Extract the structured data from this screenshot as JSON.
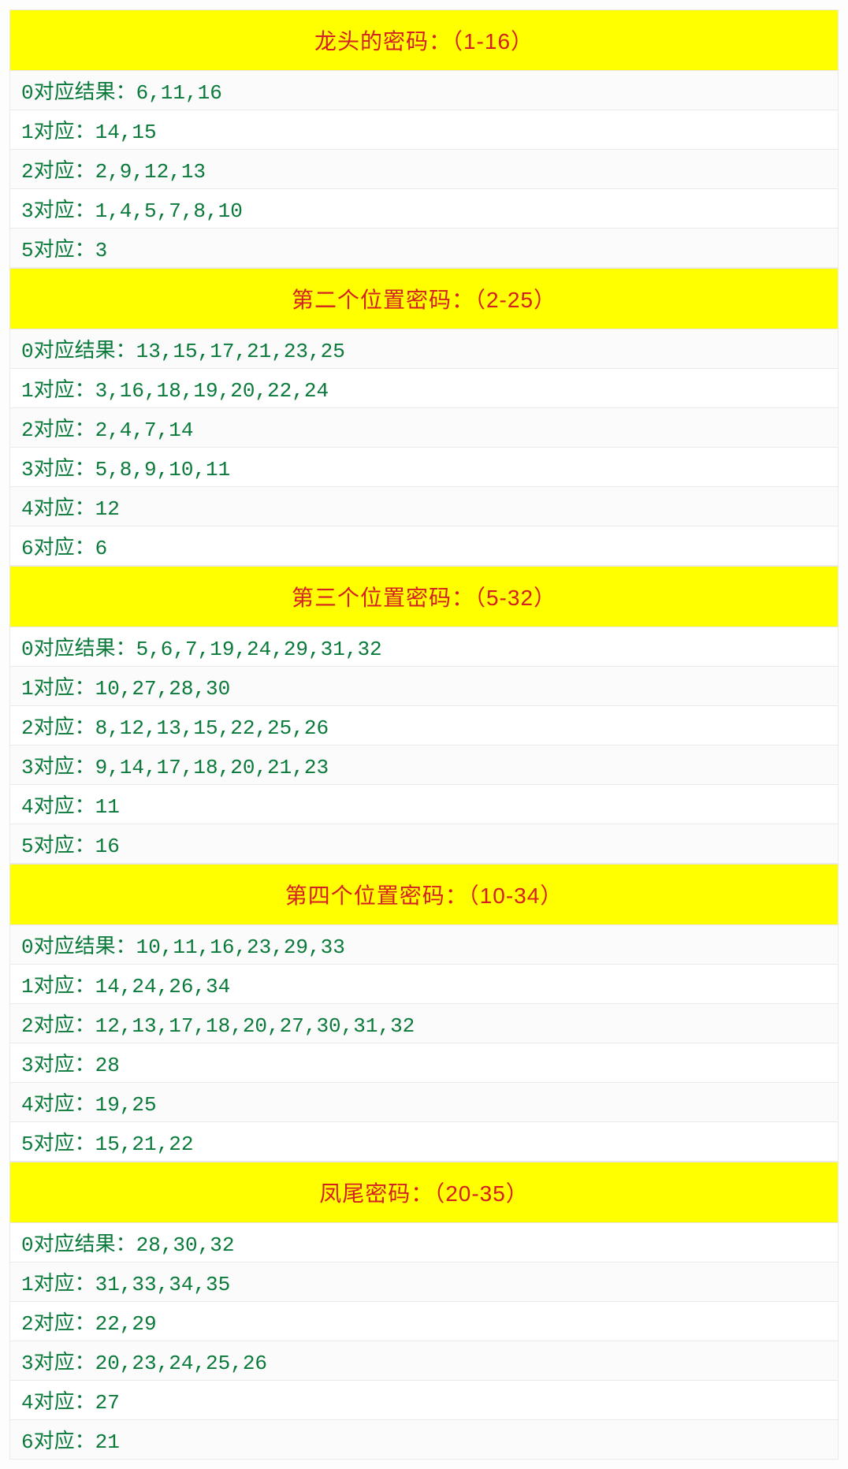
{
  "colors": {
    "header_bg": "#ffff00",
    "header_text": "#d42020",
    "row_text": "#0a7a3a",
    "row_border": "#eaeaea",
    "row_bg": "#ffffff",
    "row_bg_alt": "#fbfbfb"
  },
  "typography": {
    "header_fontsize": 28,
    "row_fontsize": 26,
    "header_weight": 500
  },
  "sections": [
    {
      "title": "龙头的密码：（1-16）",
      "rows": [
        "0对应结果：6,11,16",
        "1对应：14,15",
        "2对应：2,9,12,13",
        "3对应：1,4,5,7,8,10",
        "5对应：3"
      ]
    },
    {
      "title": "第二个位置密码：（2-25）",
      "rows": [
        "0对应结果：13,15,17,21,23,25",
        "1对应：3,16,18,19,20,22,24",
        "2对应：2,4,7,14",
        "3对应：5,8,9,10,11",
        "4对应：12",
        "6对应：6"
      ]
    },
    {
      "title": "第三个位置密码：（5-32）",
      "rows": [
        "0对应结果：5,6,7,19,24,29,31,32",
        "1对应：10,27,28,30",
        "2对应：8,12,13,15,22,25,26",
        "3对应：9,14,17,18,20,21,23",
        "4对应：11",
        "5对应：16"
      ]
    },
    {
      "title": "第四个位置密码：（10-34）",
      "rows": [
        "0对应结果：10,11,16,23,29,33",
        "1对应：14,24,26,34",
        "2对应：12,13,17,18,20,27,30,31,32",
        "3对应：28",
        "4对应：19,25",
        "5对应：15,21,22"
      ]
    },
    {
      "title": "凤尾密码：（20-35）",
      "rows": [
        "0对应结果：28,30,32",
        "1对应：31,33,34,35",
        "2对应：22,29",
        "3对应：20,23,24,25,26",
        "4对应：27",
        "6对应：21"
      ]
    }
  ]
}
